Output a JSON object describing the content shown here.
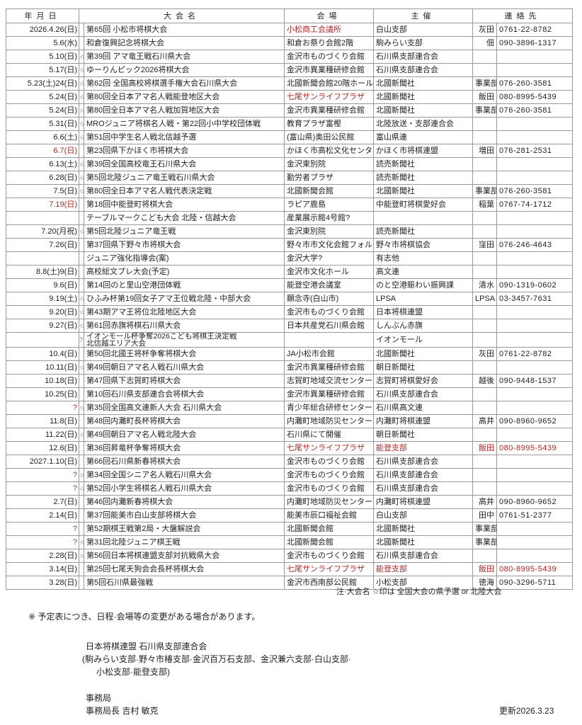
{
  "headers": {
    "date": "年月日",
    "name": "大会名",
    "venue": "会場",
    "organizer": "主催",
    "contact": "連絡先"
  },
  "accent_red": "#b02828",
  "rows": [
    {
      "date": "2026.4.26(日)",
      "star": "",
      "name": "第65回 小松市将棋大会",
      "venue": "小松商工会議所",
      "organizer": "白山支部",
      "person": "灰田",
      "phone": "0761-22-8782",
      "red": [
        "venue"
      ]
    },
    {
      "date": "5.6(水)",
      "star": "",
      "name": "和倉復興記念将棋大会",
      "venue": "和倉お祭り会館2階",
      "organizer": "駒みらい支部",
      "person": "佃",
      "phone": "090-3896-1317",
      "red": []
    },
    {
      "date": "5.10(日)",
      "star": "☆",
      "name": "第39回 アマ竜王戦石川県大会",
      "venue": "金沢市ものづくり会館",
      "organizer": "石川県支部連合会",
      "person": "",
      "phone": "",
      "red": []
    },
    {
      "date": "5.17(日)",
      "star": "☆",
      "name": "ゆーりんピック2026将棋大会",
      "venue": "金沢市異業種研修会館",
      "organizer": "石川県支部連合会",
      "person": "",
      "phone": "",
      "red": []
    },
    {
      "date": "5.23(土)24(日)",
      "star": "☆",
      "name": "第62回 全国高校将棋選手権大会石川県大会",
      "venue": "北國新聞会館20階ホール",
      "organizer": "北國新聞社",
      "person": "事業部",
      "phone": "076-260-3581",
      "red": []
    },
    {
      "date": "5.24(日)",
      "star": "☆",
      "name": "第80回全日本アマ名人戦能登地区大会",
      "venue": "七尾サンライフプラザ",
      "organizer": "北國新聞社",
      "person": "飯田",
      "phone": "080-8995-5439",
      "red": [
        "venue"
      ]
    },
    {
      "date": "5.24(日)",
      "star": "☆",
      "name": "第80回全日本アマ名人戦加賀地区大会",
      "venue": "金沢市異業種研修会館",
      "organizer": "北國新聞社",
      "person": "事業部",
      "phone": "076-260-3581",
      "red": []
    },
    {
      "date": "5.31(日)",
      "star": "☆",
      "name": "MROジュニア将棋名人戦・第22回小中学校団体戦",
      "venue": "教育プラザ富樫",
      "organizer": "北陸放送・支部連合会",
      "person": "",
      "phone": "",
      "red": []
    },
    {
      "date": "6.6(土)",
      "star": "☆",
      "name": "第51回中学生名人戦北信越予選",
      "venue": "(富山県)奥田公民館",
      "organizer": "富山県連",
      "person": "",
      "phone": "",
      "red": []
    },
    {
      "date": "6.7(日)",
      "star": "",
      "name": "第23回県下かほく市将棋大会",
      "venue": "かほく市高松文化センター",
      "organizer": "かほく市将棋連盟",
      "person": "増田",
      "phone": "076-281-2531",
      "red": [
        "date"
      ]
    },
    {
      "date": "6.13(土)",
      "star": "☆",
      "name": "第39回全国高校竜王石川県大会",
      "venue": "金沢東別院",
      "organizer": "読売新聞社",
      "person": "",
      "phone": "",
      "red": []
    },
    {
      "date": "6.28(日)",
      "star": "☆",
      "name": "第5回北陸ジュニア竜王戦石川県大会",
      "venue": "勤労者プラザ",
      "organizer": "読売新聞社",
      "person": "",
      "phone": "",
      "red": []
    },
    {
      "date": "7.5(日)",
      "star": "☆",
      "name": "第80回全日本アマ名人戦代表決定戦",
      "venue": "北國新聞会館",
      "organizer": "北國新聞社",
      "person": "事業部",
      "phone": "076-260-3581",
      "red": []
    },
    {
      "date": "7.19(日)",
      "star": "",
      "name": "第18回中能登町将棋大会",
      "venue": "ラピア鹿島",
      "organizer": "中能登町将棋愛好会",
      "person": "稲葉",
      "phone": "0767-74-1712",
      "red": [
        "date"
      ]
    },
    {
      "date": "",
      "star": "",
      "name": "テーブルマークこども大会 北陸・信越大会",
      "venue": "産業展示館4号館?",
      "organizer": "",
      "person": "",
      "phone": "",
      "red": []
    },
    {
      "date": "7.20(月祝)",
      "star": "☆",
      "name": "第5回北陸ジュニア竜王戦",
      "venue": "金沢東別院",
      "organizer": "読売新聞社",
      "person": "",
      "phone": "",
      "red": []
    },
    {
      "date": "7.26(日)",
      "star": "",
      "name": "第37回県下野々市将棋大会",
      "venue": "野々市市文化会館フォルテ",
      "organizer": "野々市将棋協会",
      "person": "窪田",
      "phone": "076-246-4643",
      "red": []
    },
    {
      "date": "",
      "star": "",
      "name": "ジュニア強化指導会(案)",
      "venue": "金沢大学?",
      "organizer": "有志他",
      "person": "",
      "phone": "",
      "red": []
    },
    {
      "date": "8.8(土)9(日)",
      "star": "",
      "name": "高校総文プレ大会(予定)",
      "venue": "金沢市文化ホール",
      "organizer": "高文連",
      "person": "",
      "phone": "",
      "red": []
    },
    {
      "date": "9.6(日)",
      "star": "",
      "name": "第14回のと里山空港団体戦",
      "venue": "能登空港会議室",
      "organizer": "のと空港賑わい振興課",
      "person": "清水",
      "phone": "090-1319-0602",
      "red": []
    },
    {
      "date": "9.19(土)",
      "star": "☆",
      "name": "ひふみ杯第19回女子アマ王位戦北陸・中部大会",
      "venue": "願念寺(白山市)",
      "organizer": "LPSA",
      "person": "LPSA",
      "phone": "03-3457-7631",
      "red": []
    },
    {
      "date": "9.20(日)",
      "star": "☆",
      "name": "第43期アマ王将位北陸地区大会",
      "venue": "金沢市ものづくり会館",
      "organizer": "日本将棋連盟",
      "person": "",
      "phone": "",
      "red": []
    },
    {
      "date": "9.27(日)",
      "star": "☆",
      "name": "第61回赤旗将棋石川県大会",
      "venue": "日本共産党石川県会館",
      "organizer": "しんぶん赤旗",
      "person": "",
      "phone": "",
      "red": []
    },
    {
      "date": "",
      "star": "?",
      "name": "イオンモール杯争奪2026こども将棋王決定戦",
      "name2": "北信越エリア大会",
      "venue": "",
      "organizer": "イオンモール",
      "person": "",
      "phone": "",
      "red": []
    },
    {
      "date": "10.4(日)",
      "star": "",
      "name": "第50回北國王将杯争奪将棋大会",
      "venue": "JA小松市会館",
      "organizer": "北國新聞社",
      "person": "灰田",
      "phone": "0761-22-8782",
      "red": []
    },
    {
      "date": "10.11(日)",
      "star": "☆",
      "name": "第49回朝日アマ名人戦石川県大会",
      "venue": "金沢市異業種研修会館",
      "organizer": "朝日新聞社",
      "person": "",
      "phone": "",
      "red": []
    },
    {
      "date": "10.18(日)",
      "star": "",
      "name": "第47回県下志賀町将棋大会",
      "venue": "志賀町地域交流センター",
      "organizer": "志賀町将棋愛好会",
      "person": "越後",
      "phone": "090-9448-1537",
      "red": []
    },
    {
      "date": "10.25(日)",
      "star": "",
      "name": "第10回石川県支部連合会将棋大会",
      "venue": "金沢市異業種研修会館",
      "organizer": "石川県支部連合会",
      "person": "",
      "phone": "",
      "red": []
    },
    {
      "date": "?",
      "star": "☆",
      "name": "第35回全国高文連新人大会 石川県大会",
      "venue": "青少年総合研修センター",
      "organizer": "石川県高文連",
      "person": "",
      "phone": "",
      "red": [
        "date"
      ]
    },
    {
      "date": "11.8(日)",
      "star": "",
      "name": "第48回内灘町長杯将棋大会",
      "venue": "内灘町地域防災センター",
      "organizer": "内灘町将棋連盟",
      "person": "高井",
      "phone": "090-8960-9652",
      "red": []
    },
    {
      "date": "11.22(日)",
      "star": "☆",
      "name": "第49回朝日アマ名人戦北陸大会",
      "venue": "石川県にて開催",
      "organizer": "朝日新聞社",
      "person": "",
      "phone": "",
      "red": []
    },
    {
      "date": "12.6(日)",
      "star": "",
      "name": "第36回昇竜杯争奪将棋大会",
      "venue": "七尾サンライフプラザ",
      "organizer": "能登支部",
      "person": "飯田",
      "phone": "080-8995-5439",
      "red": [
        "venue",
        "organizer",
        "person",
        "phone"
      ]
    },
    {
      "date": "2027.1.10(日)",
      "star": "",
      "name": "第66回石川県新春将棋大会",
      "venue": "金沢市ものづくり会館",
      "organizer": "石川県支部連合会",
      "person": "",
      "phone": "",
      "red": []
    },
    {
      "date": "?",
      "star": "☆",
      "name": "第34回全国シニア名人戦石川県大会",
      "venue": "金沢市ものづくり会館",
      "organizer": "石川県支部連合会",
      "person": "",
      "phone": "",
      "red": []
    },
    {
      "date": "?",
      "star": "☆",
      "name": "第52回小学生将棋名人戦石川県大会",
      "venue": "金沢市ものづくり会館",
      "organizer": "石川県支部連合会",
      "person": "",
      "phone": "",
      "red": []
    },
    {
      "date": "2.7(日)",
      "star": "",
      "name": "第46回内灘新春将棋大会",
      "venue": "内灘町地域防災センター",
      "organizer": "内灘町将棋連盟",
      "person": "高井",
      "phone": "090-8960-9652",
      "red": []
    },
    {
      "date": "2.14(日)",
      "star": "",
      "name": "第37回能美市白山支部将棋大会",
      "venue": "能美市辰口福祉会館",
      "organizer": "白山支部",
      "person": "田中",
      "phone": "0761-51-2377",
      "red": []
    },
    {
      "date": "?",
      "star": "",
      "name": "第52期棋王戦第2局・大盤解説会",
      "venue": "北國新聞会館",
      "organizer": "北國新聞社",
      "person": "事業部",
      "phone": "",
      "red": []
    },
    {
      "date": "?",
      "star": "☆",
      "name": "第31回北陸ジュニア棋王戦",
      "venue": "北國新聞会館",
      "organizer": "北國新聞社",
      "person": "事業部",
      "phone": "",
      "red": []
    },
    {
      "date": "2.28(日)",
      "star": "☆",
      "name": "第56回日本将棋連盟支部対抗戦県大会",
      "venue": "金沢市ものづくり会館",
      "organizer": "石川県支部連合会",
      "person": "",
      "phone": "",
      "red": []
    },
    {
      "date": "3.14(日)",
      "star": "",
      "name": "第25回七尾天狗会会長杯将棋大会",
      "venue": "七尾サンライフプラザ",
      "organizer": "能登支部",
      "person": "飯田",
      "phone": "080-8995-5439",
      "red": [
        "venue",
        "organizer",
        "person",
        "phone"
      ]
    },
    {
      "date": "3.28(日)",
      "star": "",
      "name": "第5回石川県最強戦",
      "venue": "金沢市西南部公民館",
      "organizer": "小松支部",
      "person": "徳海",
      "phone": "090-3296-5711",
      "red": []
    }
  ],
  "table_note": "注·大会名 ☆印は 全国大会の県予選 or 北陸大会",
  "footer": {
    "disclaimer": "※ 予定表につき、日程·会場等の変更がある場合があります。",
    "org_name": "日本将棋連盟 石川県支部連合会",
    "branches_line1": "(駒みらい支部·野々市椿支部·金沢百万石支部、金沢兼六支部·白山支部·",
    "branches_line2": "小松支部·能登支部)",
    "office": "事務局",
    "director": "事務局長 吉村 敏克",
    "updated": "更新2026.3.23"
  }
}
